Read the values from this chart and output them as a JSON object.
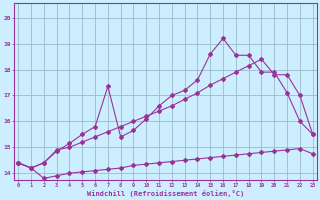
{
  "xlabel": "Windchill (Refroidissement éolien,°C)",
  "bg_color": "#cceeff",
  "line_color": "#993399",
  "grid_color": "#99bbcc",
  "ylim": [
    13.75,
    20.55
  ],
  "xlim": [
    -0.3,
    23.3
  ],
  "yticks": [
    14,
    15,
    16,
    17,
    18,
    19,
    20
  ],
  "xticks": [
    0,
    1,
    2,
    3,
    4,
    5,
    6,
    7,
    8,
    9,
    10,
    11,
    12,
    13,
    14,
    15,
    16,
    17,
    18,
    19,
    20,
    21,
    22,
    23
  ],
  "line1_x": [
    0,
    1,
    2,
    3,
    4,
    5,
    6,
    7,
    8,
    9,
    10,
    11,
    12,
    13,
    14,
    15,
    16,
    17,
    18,
    19,
    20,
    21,
    22,
    23
  ],
  "line1_y": [
    14.4,
    14.2,
    13.8,
    13.9,
    14.0,
    14.05,
    14.1,
    14.15,
    14.2,
    14.3,
    14.35,
    14.4,
    14.45,
    14.5,
    14.55,
    14.6,
    14.65,
    14.7,
    14.75,
    14.8,
    14.85,
    14.9,
    14.95,
    14.75
  ],
  "line2_x": [
    0,
    1,
    2,
    3,
    4,
    5,
    6,
    7,
    8,
    9,
    10,
    11,
    12,
    13,
    14,
    15,
    16,
    17,
    18,
    19,
    20,
    21,
    22,
    23
  ],
  "line2_y": [
    14.4,
    14.2,
    14.4,
    14.9,
    15.0,
    15.2,
    15.4,
    15.6,
    15.8,
    16.0,
    16.2,
    16.4,
    16.6,
    16.85,
    17.1,
    17.4,
    17.65,
    17.9,
    18.15,
    18.4,
    17.8,
    17.8,
    17.0,
    15.5
  ],
  "line3_x": [
    0,
    1,
    2,
    3,
    4,
    5,
    6,
    7,
    8,
    9,
    10,
    11,
    12,
    13,
    14,
    15,
    16,
    17,
    18,
    19,
    20,
    21,
    22,
    23
  ],
  "line3_y": [
    14.4,
    14.2,
    14.4,
    14.85,
    15.15,
    15.5,
    15.8,
    17.35,
    15.4,
    15.65,
    16.1,
    16.6,
    17.0,
    17.2,
    17.6,
    18.6,
    19.2,
    18.55,
    18.55,
    17.9,
    17.9,
    17.1,
    16.0,
    15.5
  ]
}
